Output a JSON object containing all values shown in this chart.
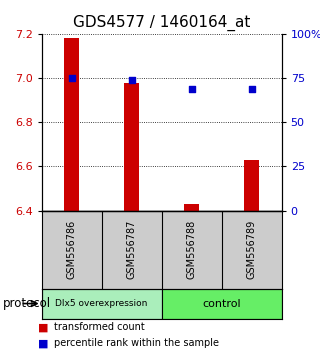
{
  "title": "GDS4577 / 1460164_at",
  "samples": [
    "GSM556786",
    "GSM556787",
    "GSM556788",
    "GSM556789"
  ],
  "bar_values": [
    7.18,
    6.975,
    6.43,
    6.63
  ],
  "percentile_values": [
    75,
    74,
    69,
    69
  ],
  "ylim_left": [
    6.4,
    7.2
  ],
  "ylim_right": [
    0,
    100
  ],
  "yticks_left": [
    6.4,
    6.6,
    6.8,
    7.0,
    7.2
  ],
  "yticks_right": [
    0,
    25,
    50,
    75,
    100
  ],
  "ytick_labels_right": [
    "0",
    "25",
    "50",
    "75",
    "100%"
  ],
  "bar_color": "#cc0000",
  "dot_color": "#0000cc",
  "bar_bottom": 6.4,
  "bar_width": 0.25,
  "groups": [
    {
      "label": "Dlx5 overexpression",
      "samples": [
        0,
        1
      ],
      "color": "#aaeebb"
    },
    {
      "label": "control",
      "samples": [
        2,
        3
      ],
      "color": "#66ee66"
    }
  ],
  "protocol_label": "protocol",
  "legend_bar_label": "transformed count",
  "legend_dot_label": "percentile rank within the sample",
  "title_fontsize": 11,
  "tick_fontsize": 8,
  "group_fontsize": 8,
  "sample_fontsize": 7,
  "sample_box_color": "#cccccc",
  "plot_bg": "#ffffff",
  "fig_bg": "#ffffff"
}
